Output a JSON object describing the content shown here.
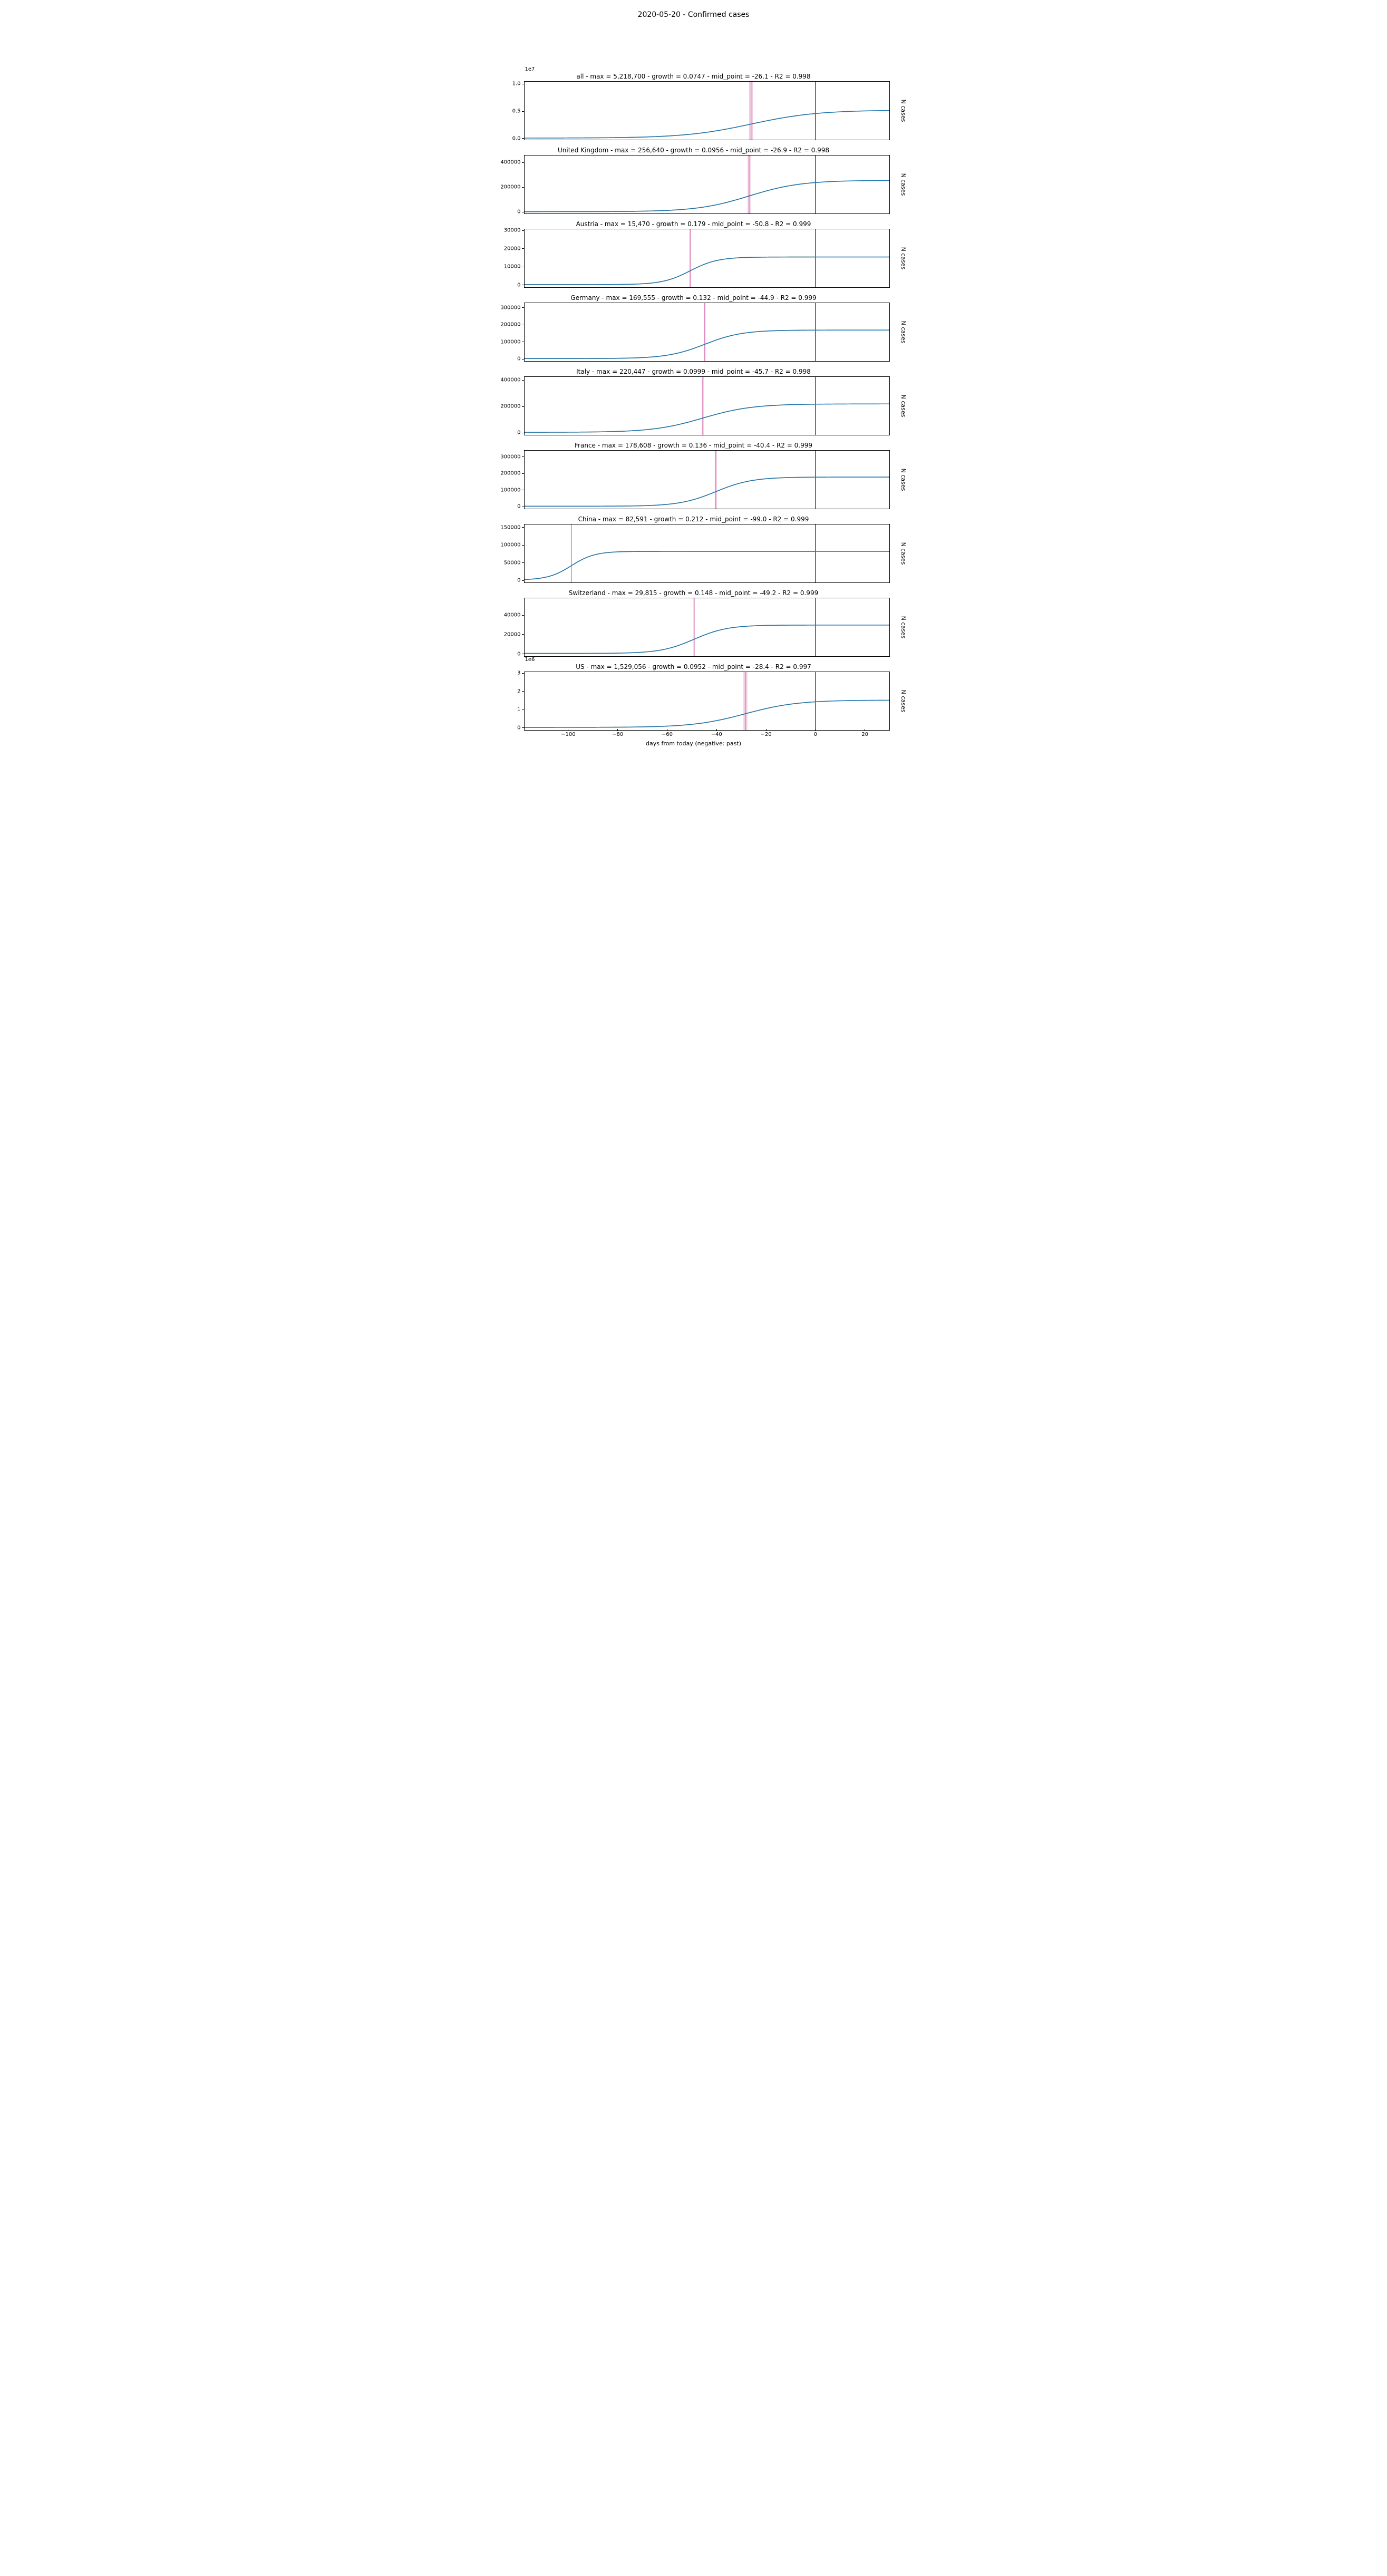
{
  "figure": {
    "title": "2020-05-20 - Confirmed cases",
    "xlabel": "days from today (negative: past)",
    "ylabel": "N cases",
    "background_color": "#ffffff",
    "axes_color": "#000000",
    "text_color": "#000000",
    "font_family": "DejaVu Sans",
    "title_fontsize": 14,
    "subtitle_fontsize": 12,
    "tick_fontsize": 10,
    "label_fontsize": 11,
    "line_width": 1.6,
    "x": {
      "min": -118,
      "max": 30,
      "ticks": [
        -100,
        -80,
        -60,
        -40,
        -20,
        0,
        20
      ],
      "tick_labels": [
        "−100",
        "−80",
        "−60",
        "−40",
        "−20",
        "0",
        "20"
      ]
    },
    "colors": {
      "data": "#1f77b4",
      "fit": "#f0a838",
      "mid": "#d974b0",
      "zero": "#000000"
    }
  },
  "panels": [
    {
      "id": "all",
      "title": "all - max = 5,218,700 - growth = 0.0747 - mid_point = -26.1 - R2 = 0.998",
      "max": 5218700,
      "growth": 0.0747,
      "mid_point": -26.1,
      "r2": 0.998,
      "y_exponent": "1e7",
      "y": {
        "min": -0.03,
        "max": 1.05,
        "scale": 10000000.0,
        "ticks": [
          0.0,
          0.5,
          1.0
        ],
        "tick_labels": [
          "0.0",
          "0.5",
          "1.0"
        ]
      },
      "mid_band_halfwidth": 0.8,
      "data_x_end": 0
    },
    {
      "id": "uk",
      "title": "United Kingdom - max = 256,640 - growth = 0.0956 - mid_point = -26.9 - R2 = 0.998",
      "max": 256640,
      "growth": 0.0956,
      "mid_point": -26.9,
      "r2": 0.998,
      "y": {
        "min": -15000,
        "max": 460000,
        "scale": 1,
        "ticks": [
          0,
          200000,
          400000
        ],
        "tick_labels": [
          "0",
          "200000",
          "400000"
        ]
      },
      "mid_band_halfwidth": 0.6,
      "data_x_end": 0
    },
    {
      "id": "austria",
      "title": "Austria - max = 15,470 - growth = 0.179 - mid_point = -50.8 - R2 = 0.999",
      "max": 15470,
      "growth": 0.179,
      "mid_point": -50.8,
      "r2": 0.999,
      "y": {
        "min": -1500,
        "max": 31000,
        "scale": 1,
        "ticks": [
          0,
          10000,
          20000,
          30000
        ],
        "tick_labels": [
          "0",
          "10000",
          "20000",
          "30000"
        ]
      },
      "mid_band_halfwidth": 0.3,
      "data_x_end": 0
    },
    {
      "id": "germany",
      "title": "Germany - max = 169,555 - growth = 0.132 - mid_point = -44.9 - R2 = 0.999",
      "max": 169555,
      "growth": 0.132,
      "mid_point": -44.9,
      "r2": 0.999,
      "y": {
        "min": -15000,
        "max": 330000,
        "scale": 1,
        "ticks": [
          0,
          100000,
          200000,
          300000
        ],
        "tick_labels": [
          "0",
          "100000",
          "200000",
          "300000"
        ]
      },
      "mid_band_halfwidth": 0.3,
      "data_x_end": 0
    },
    {
      "id": "italy",
      "title": "Italy - max = 220,447 - growth = 0.0999 - mid_point = -45.7 - R2 = 0.998",
      "max": 220447,
      "growth": 0.0999,
      "mid_point": -45.7,
      "r2": 0.998,
      "y": {
        "min": -20000,
        "max": 430000,
        "scale": 1,
        "ticks": [
          0,
          200000,
          400000
        ],
        "tick_labels": [
          "0",
          "200000",
          "400000"
        ]
      },
      "mid_band_halfwidth": 0.4,
      "data_x_end": 0
    },
    {
      "id": "france",
      "title": "France - max = 178,608 - growth = 0.136 - mid_point = -40.4 - R2 = 0.999",
      "max": 178608,
      "growth": 0.136,
      "mid_point": -40.4,
      "r2": 0.999,
      "y": {
        "min": -15000,
        "max": 340000,
        "scale": 1,
        "ticks": [
          0,
          100000,
          200000,
          300000
        ],
        "tick_labels": [
          "0",
          "100000",
          "200000",
          "300000"
        ]
      },
      "mid_band_halfwidth": 0.4,
      "data_x_end": 0
    },
    {
      "id": "china",
      "title": "China - max = 82,591 - growth = 0.212 - mid_point = -99.0 - R2 = 0.999",
      "max": 82591,
      "growth": 0.212,
      "mid_point": -99.0,
      "r2": 0.999,
      "y": {
        "min": -7000,
        "max": 160000,
        "scale": 1,
        "ticks": [
          0,
          50000,
          100000,
          150000
        ],
        "tick_labels": [
          "0",
          "50000",
          "100000",
          "150000"
        ]
      },
      "mid_band_halfwidth": 0.2,
      "data_x_end": 0
    },
    {
      "id": "switzerland",
      "title": "Switzerland - max = 29,815 - growth = 0.148 - mid_point = -49.2 - R2 = 0.999",
      "max": 29815,
      "growth": 0.148,
      "mid_point": -49.2,
      "r2": 0.999,
      "y": {
        "min": -3000,
        "max": 58000,
        "scale": 1,
        "ticks": [
          0,
          20000,
          40000
        ],
        "tick_labels": [
          "0",
          "20000",
          "40000"
        ]
      },
      "mid_band_halfwidth": 0.3,
      "data_x_end": 0
    },
    {
      "id": "us",
      "title": "US - max = 1,529,056 - growth = 0.0952 - mid_point = -28.4 - R2 = 0.997",
      "max": 1529056,
      "growth": 0.0952,
      "mid_point": -28.4,
      "r2": 0.997,
      "y_exponent": "1e6",
      "y": {
        "min": -0.15,
        "max": 3.1,
        "scale": 1000000.0,
        "ticks": [
          0,
          1,
          2,
          3
        ],
        "tick_labels": [
          "0",
          "1",
          "2",
          "3"
        ]
      },
      "mid_band_halfwidth": 0.8,
      "data_x_end": 0
    }
  ]
}
